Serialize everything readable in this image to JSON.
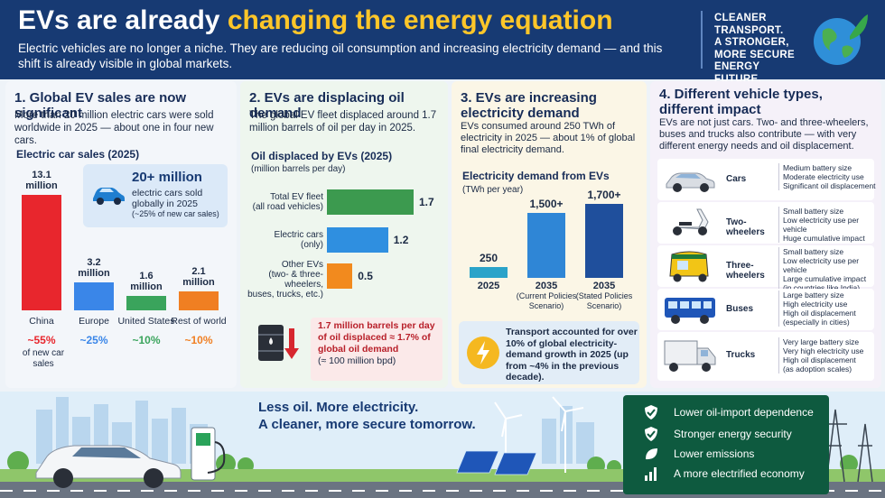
{
  "header": {
    "title_part1": "EVs are already ",
    "title_part2": "changing the energy equation",
    "subtitle": "Electric vehicles are no longer a niche. They are reducing oil consumption and increasing electricity demand — and this shift is already visible in global markets.",
    "tagline_lines": [
      "CLEANER",
      "TRANSPORT.",
      "A STRONGER,",
      "MORE SECURE",
      "ENERGY FUTURE."
    ],
    "globe_icon": "globe-leaf-icon"
  },
  "panel1": {
    "title": "1. Global EV sales are now significant",
    "text": "More than 20 million electric cars were sold worldwide in 2025 — about one in four new cars.",
    "chart_label": "Electric car sales (2025)",
    "highlight_value": "20+ million",
    "highlight_text": "electric cars sold globally in 2025",
    "highlight_note": "(~25% of new car sales)",
    "car_icon": "car-icon"
  },
  "panel2": {
    "title": "2. EVs are displacing oil demand",
    "text": "The global EV fleet displaced around 1.7 million barrels of oil per day in 2025.",
    "chart_label": "Oil displaced by EVs (2025)",
    "chart_unit": "(million barrels per day)",
    "callout_line1": "1.7 million barrels per day",
    "callout_line2": "of oil displaced ≈ 1.7% of",
    "callout_line3": "global oil demand",
    "callout_line4": "(≈ 100 million bpd)",
    "barrel_icon": "oil-barrel-down-icon"
  },
  "panel3": {
    "title_line1": "3. EVs are increasing",
    "title_line2": "electricity demand",
    "text": "EVs consumed around 250 TWh of electricity in 2025 — about 1% of global final electricity demand.",
    "chart_label": "Electricity demand from EVs",
    "chart_unit": "(TWh per year)",
    "note": "Transport accounted for over 10% of global electricity-demand growth in 2025 (up from ~4% in the previous decade).",
    "bolt_icon": "lightning-bolt-icon"
  },
  "panel4": {
    "title_line1": "4. Different vehicle types,",
    "title_line2": "different impact",
    "text": "EVs are not just cars. Two- and three-wheelers, buses and trucks also contribute — with very different energy needs and oil displacement.",
    "vehicles": [
      {
        "name": "Cars",
        "icon": "car-icon",
        "desc": [
          "Medium battery size",
          "Moderate electricity use",
          "Significant oil displacement"
        ]
      },
      {
        "name": "Two-wheelers",
        "icon": "scooter-icon",
        "desc": [
          "Small battery size",
          "Low electricity use per vehicle",
          "Huge cumulative impact"
        ]
      },
      {
        "name": "Three-wheelers",
        "icon": "auto-rickshaw-icon",
        "desc": [
          "Small battery size",
          "Low electricity use per vehicle",
          "Large cumulative impact",
          "(in countries like India)"
        ]
      },
      {
        "name": "Buses",
        "icon": "bus-icon",
        "desc": [
          "Large battery size",
          "High electricity use",
          "High oil displacement",
          "(especially in cities)"
        ]
      },
      {
        "name": "Trucks",
        "icon": "truck-icon",
        "desc": [
          "Very large battery size",
          "Very high electricity use",
          "High oil displacement",
          "(as adoption scales)"
        ]
      }
    ]
  },
  "footer": {
    "slogan_line1": "Less oil. More electricity.",
    "slogan_line2": "A cleaner, more secure tomorrow.",
    "benefits": [
      {
        "text": "Lower oil-import dependence",
        "icon": "shield-check-icon"
      },
      {
        "text": "Stronger energy security",
        "icon": "shield-check-icon"
      },
      {
        "text": "Lower emissions",
        "icon": "leaf-icon"
      },
      {
        "text": "A more electrified economy",
        "icon": "bar-growth-icon"
      }
    ]
  },
  "chart_data": [
    {
      "type": "bar",
      "title": "Electric car sales (2025)",
      "categories": [
        "China",
        "Europe",
        "United States",
        "Rest of world"
      ],
      "values": [
        13.1,
        3.2,
        1.6,
        2.1
      ],
      "value_labels": [
        "13.1 million",
        "3.2 million",
        "1.6 million",
        "2.1 million"
      ],
      "share_labels": [
        "~55%",
        "~25%",
        "~10%",
        "~10%"
      ],
      "share_note": "of new car sales",
      "colors": [
        "#e8262d",
        "#3a86e8",
        "#3aa45c",
        "#f07f22"
      ],
      "ylim": [
        0,
        14
      ]
    },
    {
      "type": "bar",
      "orientation": "horizontal",
      "title": "Oil displaced by EVs (2025)",
      "ylabel": "(million barrels per day)",
      "categories": [
        "Total EV fleet (all road vehicles)",
        "Electric cars (only)",
        "Other EVs (two- & three-wheelers, buses, trucks, etc.)"
      ],
      "category_lines": [
        [
          "Total EV fleet",
          "(all road vehicles)"
        ],
        [
          "Electric cars",
          "(only)"
        ],
        [
          "Other EVs",
          "(two- & three-wheelers,",
          "buses, trucks, etc.)"
        ]
      ],
      "values": [
        1.7,
        1.2,
        0.5
      ],
      "value_labels": [
        "1.7",
        "1.2",
        "0.5"
      ],
      "colors": [
        "#3c9a4f",
        "#2f8fe0",
        "#f28a1e"
      ],
      "xlim": [
        0,
        1.7
      ]
    },
    {
      "type": "bar",
      "title": "Electricity demand from EVs",
      "ylabel": "(TWh per year)",
      "categories": [
        "2025",
        "2035 (Current Policies Scenario)",
        "2035 (Stated Policies Scenario)"
      ],
      "category_lines": [
        [
          "2025"
        ],
        [
          "2035",
          "(Current Policies",
          "Scenario)"
        ],
        [
          "2035",
          "(Stated Policies",
          "Scenario)"
        ]
      ],
      "values": [
        250,
        1500,
        1700
      ],
      "value_labels": [
        "250",
        "1,500+",
        "1,700+"
      ],
      "colors": [
        "#2aa3c9",
        "#2f86d6",
        "#1f4f9c"
      ],
      "ylim": [
        0,
        1800
      ]
    }
  ]
}
